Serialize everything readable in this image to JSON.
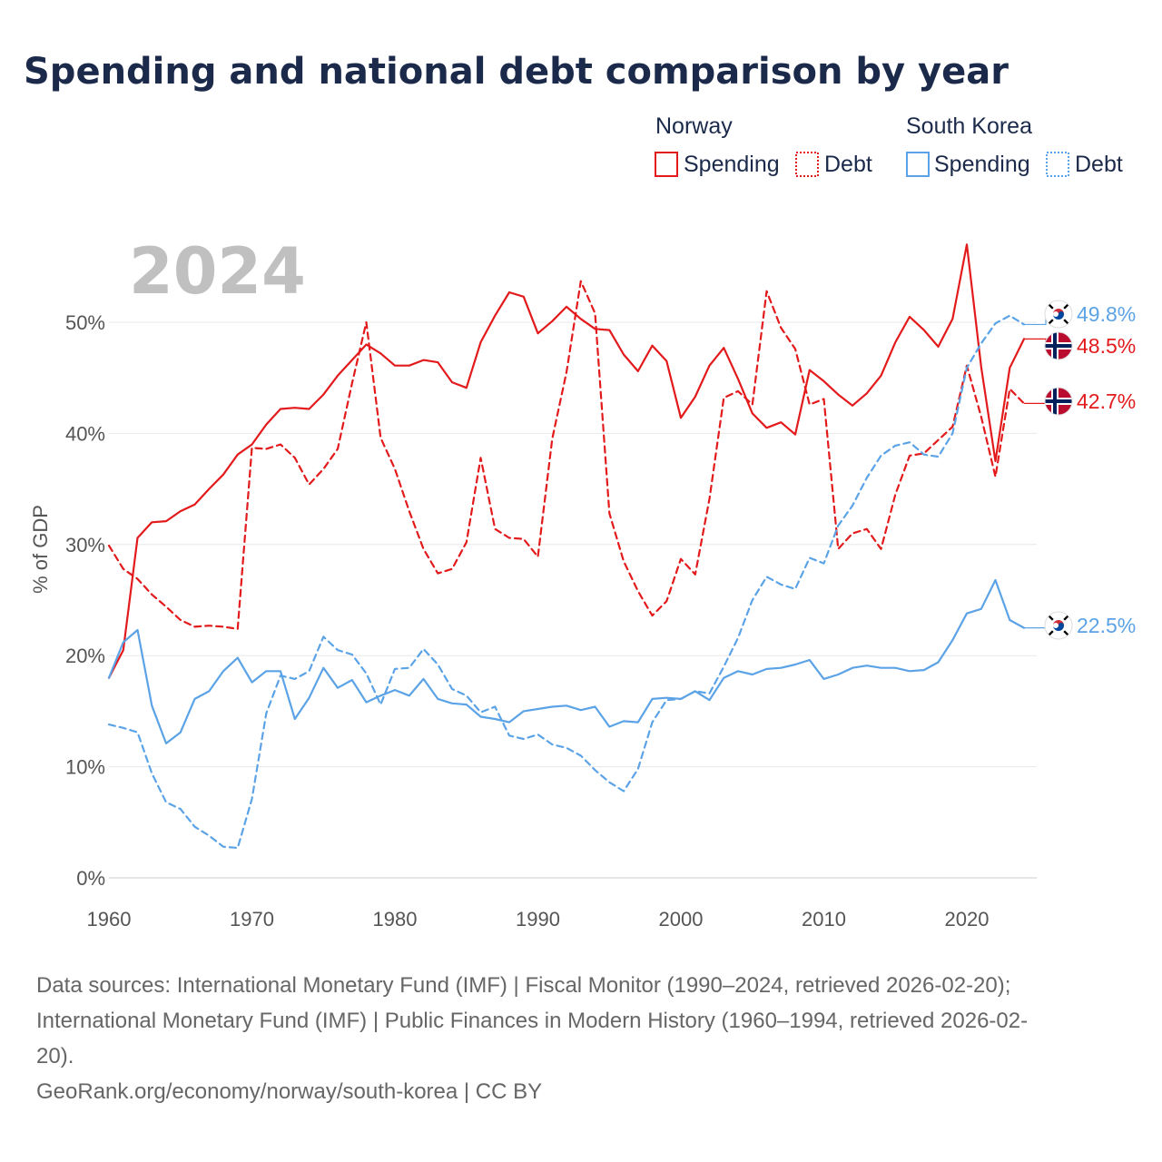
{
  "title": "Spending and national debt comparison by year",
  "year_watermark": "2024",
  "legend": {
    "groups": [
      {
        "name": "Norway",
        "color": "#e31a1c",
        "items": [
          {
            "label": "Spending",
            "style": "solid"
          },
          {
            "label": "Debt",
            "style": "dotted"
          }
        ]
      },
      {
        "name": "South Korea",
        "color": "#5ba3e6",
        "items": [
          {
            "label": "Spending",
            "style": "solid"
          },
          {
            "label": "Debt",
            "style": "dotted"
          }
        ]
      }
    ]
  },
  "footer": {
    "lines": [
      "Data sources: International Monetary Fund (IMF) | Fiscal Monitor (1990–2024, retrieved 2026-02-20);",
      "International Monetary Fund (IMF) | Public Finances in Modern History (1960–1994, retrieved 2026-02-",
      "20).",
      "GeoRank.org/economy/norway/south-korea | CC BY"
    ]
  },
  "chart_data": {
    "type": "line",
    "title": "Spending and national debt comparison by year",
    "xlabel": "",
    "ylabel": "% of GDP",
    "xlim": [
      1960,
      2024
    ],
    "ylim": [
      0,
      57
    ],
    "grid": true,
    "x_ticks": [
      1960,
      1970,
      1980,
      1990,
      2000,
      2010,
      2020
    ],
    "x_tick_labels": [
      "1960",
      "1970",
      "1980",
      "1990",
      "2000",
      "2010",
      "2020"
    ],
    "y_ticks": [
      0,
      10,
      20,
      30,
      40,
      50
    ],
    "y_tick_labels": [
      "0%",
      "10%",
      "20%",
      "30%",
      "40%",
      "50%"
    ],
    "x": [
      1960,
      1961,
      1962,
      1963,
      1964,
      1965,
      1966,
      1967,
      1968,
      1969,
      1970,
      1971,
      1972,
      1973,
      1974,
      1975,
      1976,
      1977,
      1978,
      1979,
      1980,
      1981,
      1982,
      1983,
      1984,
      1985,
      1986,
      1987,
      1988,
      1989,
      1990,
      1991,
      1992,
      1993,
      1994,
      1995,
      1996,
      1997,
      1998,
      1999,
      2000,
      2001,
      2002,
      2003,
      2004,
      2005,
      2006,
      2007,
      2008,
      2009,
      2010,
      2011,
      2012,
      2013,
      2014,
      2015,
      2016,
      2017,
      2018,
      2019,
      2020,
      2021,
      2022,
      2023,
      2024
    ],
    "series": [
      {
        "name": "Norway Spending",
        "country": "Norway",
        "kind": "spending",
        "color": "#e31a1c",
        "dash": "solid",
        "values": [
          18.0,
          20.5,
          30.6,
          32.0,
          32.1,
          33.0,
          33.6,
          35.0,
          36.3,
          38.1,
          39.0,
          40.8,
          42.2,
          42.3,
          42.2,
          43.5,
          45.2,
          46.6,
          48.0,
          47.2,
          46.1,
          46.1,
          46.6,
          46.4,
          44.6,
          44.1,
          48.2,
          50.6,
          52.7,
          52.3,
          49.0,
          50.1,
          51.4,
          50.3,
          49.4,
          49.3,
          47.1,
          45.6,
          47.9,
          46.5,
          41.4,
          43.3,
          46.1,
          47.7,
          44.9,
          41.8,
          40.5,
          41.0,
          39.9,
          45.7,
          44.7,
          43.5,
          42.5,
          43.6,
          45.2,
          48.2,
          50.5,
          49.3,
          47.8,
          50.3,
          57.0,
          46.0,
          37.5,
          45.9,
          48.5
        ]
      },
      {
        "name": "Norway Debt",
        "country": "Norway",
        "kind": "debt",
        "color": "#e31a1c",
        "dash": "dashed",
        "values": [
          29.9,
          27.8,
          26.9,
          25.5,
          24.4,
          23.2,
          22.6,
          22.7,
          22.6,
          22.4,
          38.7,
          38.6,
          39.0,
          37.8,
          35.4,
          36.8,
          38.6,
          44.5,
          50.0,
          39.6,
          36.8,
          33.0,
          29.6,
          27.4,
          27.8,
          30.2,
          37.8,
          31.4,
          30.6,
          30.5,
          28.9,
          39.5,
          45.5,
          53.7,
          50.8,
          32.8,
          28.5,
          25.8,
          23.6,
          24.9,
          28.7,
          27.3,
          34.1,
          43.2,
          43.8,
          42.6,
          52.8,
          49.5,
          47.6,
          42.6,
          43.1,
          29.6,
          31.0,
          31.4,
          29.6,
          34.5,
          38.0,
          38.2,
          39.4,
          40.6,
          46.1,
          41.5,
          36.1,
          44.0,
          42.7
        ]
      },
      {
        "name": "South Korea Spending",
        "country": "South Korea",
        "kind": "spending",
        "color": "#5ba3e6",
        "dash": "solid",
        "values": [
          18.0,
          21.2,
          22.3,
          15.5,
          12.1,
          13.1,
          16.1,
          16.8,
          18.6,
          19.8,
          17.6,
          18.6,
          18.6,
          14.3,
          16.2,
          18.9,
          17.1,
          17.8,
          15.8,
          16.4,
          16.9,
          16.4,
          17.9,
          16.1,
          15.7,
          15.6,
          14.5,
          14.3,
          14.0,
          15.0,
          15.2,
          15.4,
          15.5,
          15.1,
          15.4,
          13.6,
          14.1,
          14.0,
          16.1,
          16.2,
          16.1,
          16.8,
          16.0,
          18.0,
          18.6,
          18.3,
          18.8,
          18.9,
          19.2,
          19.6,
          17.9,
          18.3,
          18.9,
          19.1,
          18.9,
          18.9,
          18.6,
          18.7,
          19.4,
          21.4,
          23.8,
          24.2,
          26.8,
          23.2,
          22.5
        ]
      },
      {
        "name": "South Korea Debt",
        "country": "South Korea",
        "kind": "debt",
        "color": "#5ba3e6",
        "dash": "dashed",
        "values": [
          13.8,
          13.5,
          13.1,
          9.4,
          6.8,
          6.2,
          4.6,
          3.8,
          2.8,
          2.7,
          7.1,
          14.8,
          18.2,
          17.9,
          18.6,
          21.7,
          20.5,
          20.1,
          18.4,
          15.6,
          18.8,
          18.9,
          20.6,
          19.2,
          17.0,
          16.4,
          14.9,
          15.4,
          12.8,
          12.5,
          12.9,
          12.0,
          11.7,
          11.0,
          9.7,
          8.6,
          7.8,
          9.8,
          14.0,
          16.0,
          16.1,
          16.8,
          16.6,
          19.0,
          21.6,
          25.0,
          27.1,
          26.4,
          26.0,
          28.8,
          28.3,
          31.7,
          33.5,
          36.0,
          38.0,
          38.9,
          39.2,
          38.1,
          37.9,
          40.0,
          45.9,
          48.1,
          49.9,
          50.6,
          49.8
        ]
      }
    ],
    "end_labels": [
      {
        "series": "South Korea Debt",
        "text": "49.8%",
        "value": 49.8,
        "flag": "south-korea"
      },
      {
        "series": "Norway Spending",
        "text": "48.5%",
        "value": 48.5,
        "flag": "norway"
      },
      {
        "series": "Norway Debt",
        "text": "42.7%",
        "value": 42.7,
        "flag": "norway"
      },
      {
        "series": "South Korea Spending",
        "text": "22.5%",
        "value": 22.5,
        "flag": "south-korea"
      }
    ]
  }
}
